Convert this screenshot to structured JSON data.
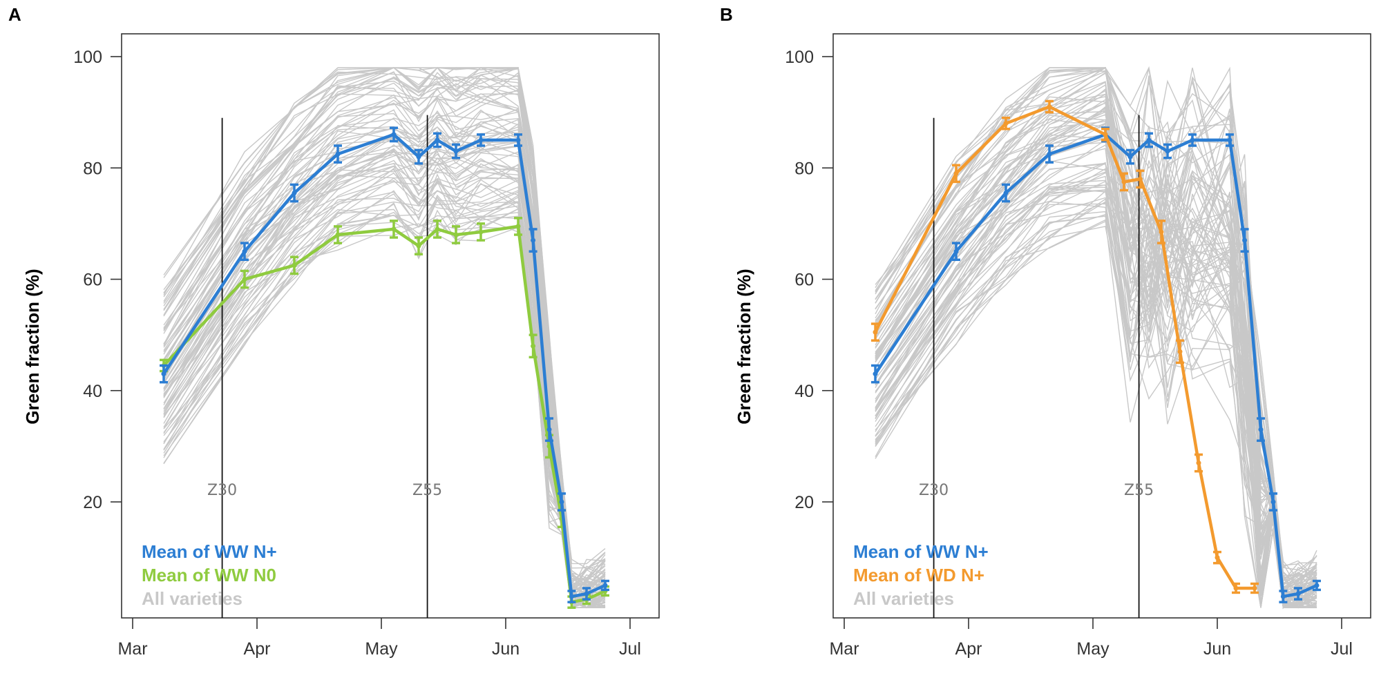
{
  "colors": {
    "ww_n_plus": "#2c7ed3",
    "ww_n0": "#8fcb3f",
    "wd_n_plus": "#f39a2e",
    "varieties": "#c8c8c8",
    "axis": "#333333"
  },
  "chart_data": [
    {
      "panel": "A",
      "type": "line",
      "ylabel": "Green fraction (%)",
      "ylim": [
        0,
        100
      ],
      "yticks": [
        20,
        40,
        60,
        80,
        100
      ],
      "xlim": [
        0,
        4.2
      ],
      "xticks": [
        {
          "label": "Mar",
          "x": 0
        },
        {
          "label": "Apr",
          "x": 1
        },
        {
          "label": "May",
          "x": 2
        },
        {
          "label": "Jun",
          "x": 3
        },
        {
          "label": "Jul",
          "x": 4
        }
      ],
      "stages": [
        {
          "label": "Z30",
          "x": 0.72,
          "top": 89
        },
        {
          "label": "Z55",
          "x": 2.37,
          "top": 89.5
        }
      ],
      "series": [
        {
          "name": "Mean of WW N+",
          "color_key": "ww_n_plus",
          "x": [
            0.25,
            0.9,
            1.3,
            1.65,
            2.1,
            2.3,
            2.45,
            2.6,
            2.8,
            3.1,
            3.22,
            3.35,
            3.45,
            3.53,
            3.65,
            3.8
          ],
          "y": [
            43,
            65,
            75.5,
            82.5,
            86,
            82,
            85,
            83,
            85,
            85,
            67,
            33,
            20,
            3,
            3.5,
            5
          ],
          "err": [
            1.5,
            1.5,
            1.5,
            1.5,
            1.2,
            1.2,
            1.2,
            1.2,
            1,
            1,
            2,
            2,
            1.5,
            1,
            1,
            0.8
          ]
        },
        {
          "name": "Mean of  WW N0",
          "color_key": "ww_n0",
          "x": [
            0.25,
            0.9,
            1.3,
            1.65,
            2.1,
            2.3,
            2.45,
            2.6,
            2.8,
            3.1,
            3.22,
            3.35,
            3.45,
            3.53,
            3.65,
            3.8
          ],
          "y": [
            44.5,
            60,
            62.5,
            68,
            69,
            66,
            69,
            68,
            68.5,
            69.5,
            48,
            30,
            17,
            2,
            2.5,
            4
          ],
          "err": [
            1,
            1.5,
            1.5,
            1.5,
            1.5,
            1.5,
            1.5,
            1.5,
            1.5,
            1.5,
            2,
            2,
            1.5,
            1,
            0.8,
            0.8
          ]
        }
      ],
      "legend": [
        {
          "label": "Mean of WW N+",
          "color_key": "ww_n_plus"
        },
        {
          "label": "Mean of  WW N0",
          "color_key": "ww_n0"
        },
        {
          "label": "All varieties",
          "color_key": "varieties"
        }
      ]
    },
    {
      "panel": "B",
      "type": "line",
      "ylabel": "Green fraction (%)",
      "ylim": [
        0,
        100
      ],
      "yticks": [
        20,
        40,
        60,
        80,
        100
      ],
      "xlim": [
        0,
        4.2
      ],
      "xticks": [
        {
          "label": "Mar",
          "x": 0
        },
        {
          "label": "Apr",
          "x": 1
        },
        {
          "label": "May",
          "x": 2
        },
        {
          "label": "Jun",
          "x": 3
        },
        {
          "label": "Jul",
          "x": 4
        }
      ],
      "stages": [
        {
          "label": "Z30",
          "x": 0.72,
          "top": 89
        },
        {
          "label": "Z55",
          "x": 2.37,
          "top": 89.5
        }
      ],
      "series": [
        {
          "name": "Mean of WW N+",
          "color_key": "ww_n_plus",
          "x": [
            0.25,
            0.9,
            1.3,
            1.65,
            2.1,
            2.3,
            2.45,
            2.6,
            2.8,
            3.1,
            3.22,
            3.35,
            3.45,
            3.53,
            3.65,
            3.8
          ],
          "y": [
            43,
            65,
            75.5,
            82.5,
            86,
            82,
            85,
            83,
            85,
            85,
            67,
            33,
            20,
            3,
            3.5,
            5
          ],
          "err": [
            1.5,
            1.5,
            1.5,
            1.5,
            1.2,
            1.2,
            1.2,
            1.2,
            1,
            1,
            2,
            2,
            1.5,
            1,
            1,
            0.8
          ]
        },
        {
          "name": "Mean of  WD N+",
          "color_key": "wd_n_plus",
          "x": [
            0.25,
            0.9,
            1.3,
            1.65,
            2.1,
            2.25,
            2.38,
            2.55,
            2.7,
            2.85,
            3.0,
            3.15,
            3.3
          ],
          "y": [
            50.5,
            79,
            88,
            91,
            86,
            77.5,
            78,
            68.5,
            47,
            27,
            10,
            4.5,
            4.5
          ],
          "err": [
            1.5,
            1.5,
            1,
            1,
            1,
            1.5,
            1.5,
            2,
            2,
            1.5,
            1,
            0.8,
            0.8
          ]
        }
      ],
      "legend": [
        {
          "label": "Mean of WW N+",
          "color_key": "ww_n_plus"
        },
        {
          "label": "Mean of  WD N+",
          "color_key": "wd_n_plus"
        },
        {
          "label": "All varieties",
          "color_key": "varieties"
        }
      ]
    }
  ]
}
